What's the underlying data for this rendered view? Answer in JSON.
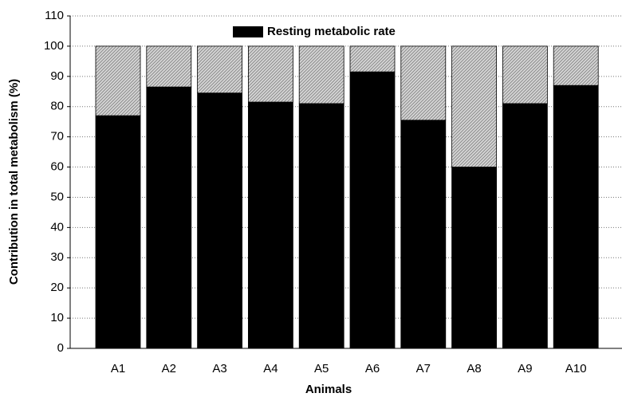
{
  "chart_data": {
    "type": "stacked_bar",
    "x_label": "Animals",
    "y_label": "Contribution in total metabolism (%)",
    "categories": [
      "A1",
      "A2",
      "A3",
      "A4",
      "A5",
      "A6",
      "A7",
      "A8",
      "A9",
      "A10"
    ],
    "series": [
      {
        "name": "Resting metabolic rate",
        "color": "#000000",
        "values": [
          77,
          86.5,
          84.5,
          81.5,
          81,
          91.5,
          75.5,
          60,
          81,
          87
        ]
      },
      {
        "color": "#8a8a8a",
        "hatch": true,
        "values": [
          23,
          13.5,
          15.5,
          18.5,
          19,
          8.5,
          24.5,
          40,
          19,
          13
        ]
      }
    ],
    "ylim": [
      0,
      110
    ],
    "yticks": [
      0,
      10,
      20,
      30,
      40,
      50,
      60,
      70,
      80,
      90,
      100,
      110
    ],
    "grid": true,
    "legend": "top"
  }
}
